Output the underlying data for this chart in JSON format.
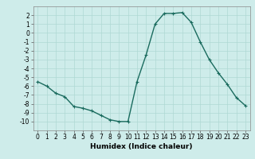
{
  "x": [
    0,
    1,
    2,
    3,
    4,
    5,
    6,
    7,
    8,
    9,
    10,
    11,
    12,
    13,
    14,
    15,
    16,
    17,
    18,
    19,
    20,
    21,
    22,
    23
  ],
  "y": [
    -5.5,
    -6.0,
    -6.8,
    -7.2,
    -8.3,
    -8.5,
    -8.8,
    -9.3,
    -9.8,
    -10.0,
    -10.0,
    -5.5,
    -2.5,
    1.0,
    2.2,
    2.2,
    2.3,
    1.2,
    -1.0,
    -3.0,
    -4.5,
    -5.8,
    -7.3,
    -8.2
  ],
  "line_color": "#1a6b5e",
  "marker": "+",
  "marker_size": 3,
  "bg_color": "#ceecea",
  "grid_color": "#afd8d4",
  "xlabel": "Humidex (Indice chaleur)",
  "ylim": [
    -11,
    3
  ],
  "xlim": [
    -0.5,
    23.5
  ],
  "yticks": [
    2,
    1,
    0,
    -1,
    -2,
    -3,
    -4,
    -5,
    -6,
    -7,
    -8,
    -9,
    -10
  ],
  "xticks": [
    0,
    1,
    2,
    3,
    4,
    5,
    6,
    7,
    8,
    9,
    10,
    11,
    12,
    13,
    14,
    15,
    16,
    17,
    18,
    19,
    20,
    21,
    22,
    23
  ],
  "tick_label_size": 5.5,
  "xlabel_size": 6.5,
  "line_width": 1.0,
  "marker_edge_width": 0.8
}
